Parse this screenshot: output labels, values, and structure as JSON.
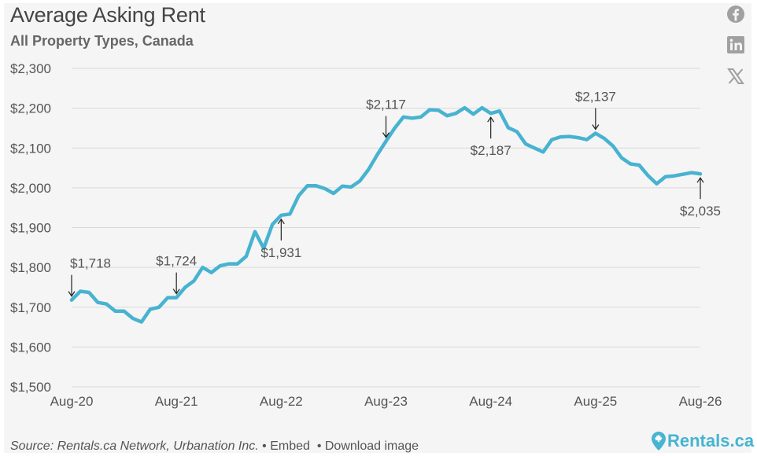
{
  "header": {
    "title": "Average Asking Rent",
    "subtitle": "All Property Types, Canada"
  },
  "share": {
    "icons": [
      "facebook-icon",
      "linkedin-icon",
      "x-icon"
    ]
  },
  "footer": {
    "source_text": "Source: Rentals.ca Network, Urbanation Inc.",
    "separator": "•",
    "embed_label": "Embed",
    "download_label": "Download image",
    "brand_name": "Rentals.ca"
  },
  "colors": {
    "line": "#47b3d0",
    "grid": "#d9d9d9",
    "axis_text": "#555555",
    "brand": "#46b4d2"
  },
  "chart_data": {
    "type": "line",
    "title": "Average Asking Rent",
    "subtitle": "All Property Types, Canada",
    "y_tick_labels": [
      "$1,500",
      "$1,600",
      "$1,700",
      "$1,800",
      "$1,900",
      "$2,000",
      "$2,100",
      "$2,200",
      "$2,300"
    ],
    "y_ticks": [
      1500,
      1600,
      1700,
      1800,
      1900,
      2000,
      2100,
      2200,
      2300
    ],
    "ylim": [
      1500,
      2300
    ],
    "x_tick_labels": [
      "Aug-20",
      "Aug-21",
      "Aug-22",
      "Aug-23",
      "Aug-24",
      "Aug-25",
      "Aug-26"
    ],
    "grid": true,
    "x": [
      "Aug-20",
      "Sep-20",
      "Oct-20",
      "Nov-20",
      "Dec-20",
      "Jan-21",
      "Feb-21",
      "Mar-21",
      "Apr-21",
      "May-21",
      "Jun-21",
      "Jul-21",
      "Aug-21",
      "Sep-21",
      "Oct-21",
      "Nov-21",
      "Dec-21",
      "Jan-22",
      "Feb-22",
      "Mar-22",
      "Apr-22",
      "May-22",
      "Jun-22",
      "Jul-22",
      "Aug-22",
      "Sep-22",
      "Oct-22",
      "Nov-22",
      "Dec-22",
      "Jan-23",
      "Feb-23",
      "Mar-23",
      "Apr-23",
      "May-23",
      "Jun-23",
      "Jul-23",
      "Aug-23",
      "Sep-23",
      "Oct-23",
      "Nov-23",
      "Dec-23",
      "Jan-24",
      "Feb-24",
      "Mar-24",
      "Apr-24",
      "May-24",
      "Jun-24",
      "Jul-24",
      "Aug-24",
      "Sep-24",
      "Oct-24",
      "Nov-24",
      "Dec-24",
      "Jan-25",
      "Feb-25",
      "Mar-25",
      "Apr-25",
      "May-25",
      "Jun-25",
      "Jul-25",
      "Aug-25",
      "Sep-25",
      "Oct-25",
      "Nov-25",
      "Dec-25",
      "Jan-26",
      "Feb-26",
      "Mar-26",
      "Apr-26",
      "May-26",
      "Jun-26",
      "Jul-26",
      "Aug-26"
    ],
    "series": [
      {
        "name": "",
        "values": [
          1718,
          1740,
          1737,
          1712,
          1708,
          1690,
          1690,
          1672,
          1663,
          1695,
          1700,
          1724,
          1724,
          1750,
          1766,
          1800,
          1787,
          1804,
          1809,
          1809,
          1828,
          1890,
          1848,
          1908,
          1931,
          1934,
          1980,
          2005,
          2005,
          1998,
          1986,
          2004,
          2002,
          2017,
          2046,
          2083,
          2117,
          2150,
          2178,
          2175,
          2178,
          2196,
          2195,
          2181,
          2187,
          2201,
          2185,
          2201,
          2187,
          2193,
          2151,
          2141,
          2110,
          2100,
          2090,
          2121,
          2128,
          2129,
          2126,
          2121,
          2137,
          2124,
          2105,
          2075,
          2060,
          2057,
          2031,
          2010,
          2028,
          2030,
          2034,
          2038,
          2035
        ]
      }
    ],
    "annotations": [
      {
        "label": "$1,718",
        "x": "Aug-20",
        "value": 1718,
        "position": "above"
      },
      {
        "label": "$1,724",
        "x": "Aug-21",
        "value": 1724,
        "position": "above"
      },
      {
        "label": "$1,931",
        "x": "Aug-22",
        "value": 1931,
        "position": "below"
      },
      {
        "label": "$2,117",
        "x": "Aug-23",
        "value": 2117,
        "position": "above"
      },
      {
        "label": "$2,187",
        "x": "Aug-24",
        "value": 2187,
        "position": "below"
      },
      {
        "label": "$2,137",
        "x": "Aug-25",
        "value": 2137,
        "position": "above"
      },
      {
        "label": "$2,035",
        "x": "Aug-26",
        "value": 2035,
        "position": "below"
      }
    ]
  }
}
